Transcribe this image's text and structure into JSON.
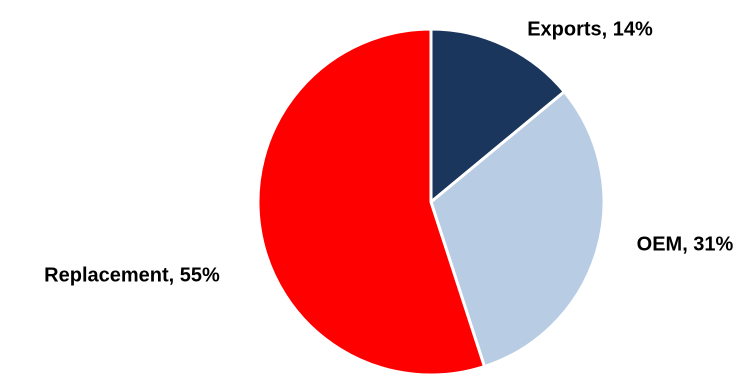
{
  "chart_data": {
    "type": "pie",
    "title": "",
    "start_angle_deg": 0,
    "direction": "clockwise",
    "slices": [
      {
        "label": "Exports",
        "value": 14,
        "display": "Exports, 14%",
        "color": "#1b365d"
      },
      {
        "label": "OEM",
        "value": 31,
        "display": "OEM, 31%",
        "color": "#b8cce4"
      },
      {
        "label": "Replacement",
        "value": 55,
        "display": "Replacement, 55%",
        "color": "#ff0000"
      }
    ],
    "legend": "none",
    "data_labels": "outside"
  }
}
